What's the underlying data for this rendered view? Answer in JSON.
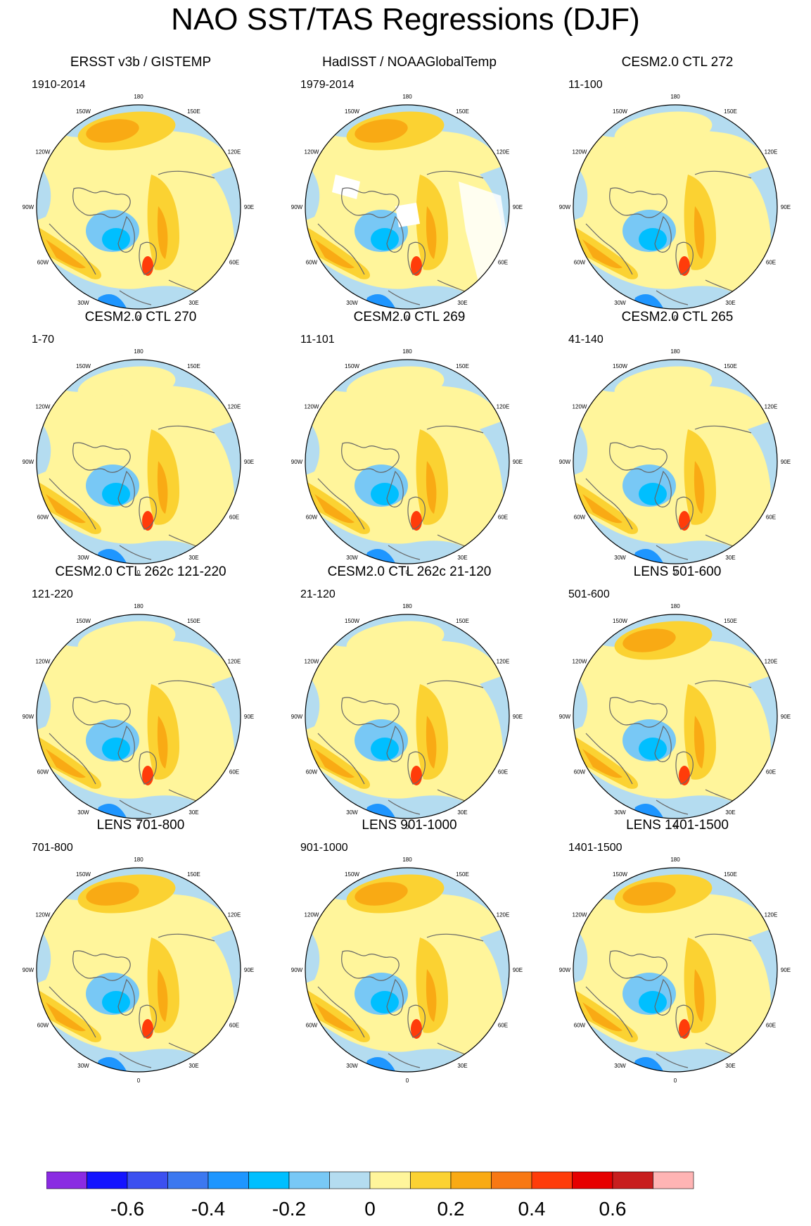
{
  "figure": {
    "title": "NAO SST/TAS Regressions (DJF)"
  },
  "longitude_labels": [
    "180",
    "150E",
    "120E",
    "90E",
    "60E",
    "30E",
    "0",
    "30W",
    "60W",
    "90W",
    "120W",
    "150W"
  ],
  "panels": [
    {
      "title": "ERSST v3b / GISTEMP",
      "period": "1910-2014",
      "style": "obs"
    },
    {
      "title": "HadISST / NOAAGlobalTemp",
      "period": "1979-2014",
      "style": "obs-masked"
    },
    {
      "title": "CESM2.0 CTL 272",
      "period": "11-100",
      "style": "model"
    },
    {
      "title": "CESM2.0 CTL 270",
      "period": "1-70",
      "style": "model"
    },
    {
      "title": "CESM2.0 CTL 269",
      "period": "11-101",
      "style": "model"
    },
    {
      "title": "CESM2.0 CTL 265",
      "period": "41-140",
      "style": "model"
    },
    {
      "title": "CESM2.0 CTL 262c 121-220",
      "period": "121-220",
      "style": "model"
    },
    {
      "title": "CESM2.0 CTL 262c 21-120",
      "period": "21-120",
      "style": "model"
    },
    {
      "title": "LENS 501-600",
      "period": "501-600",
      "style": "lens"
    },
    {
      "title": "LENS 701-800",
      "period": "701-800",
      "style": "lens"
    },
    {
      "title": "LENS 901-1000",
      "period": "901-1000",
      "style": "lens"
    },
    {
      "title": "LENS 1401-1500",
      "period": "1401-1500",
      "style": "lens"
    }
  ],
  "colorbar": {
    "colors": [
      "#8a2be2",
      "#1414ff",
      "#3c50f0",
      "#3c78f0",
      "#1e96ff",
      "#00bfff",
      "#78c8f5",
      "#b4dcf0",
      "#fff59b",
      "#fbd232",
      "#f9aa14",
      "#f87814",
      "#ff3c0a",
      "#e60000",
      "#c81e1e",
      "#ffb4b4"
    ],
    "labels": [
      "-0.6",
      "-0.4",
      "-0.2",
      "0",
      "0.2",
      "0.4",
      "0.6"
    ]
  }
}
